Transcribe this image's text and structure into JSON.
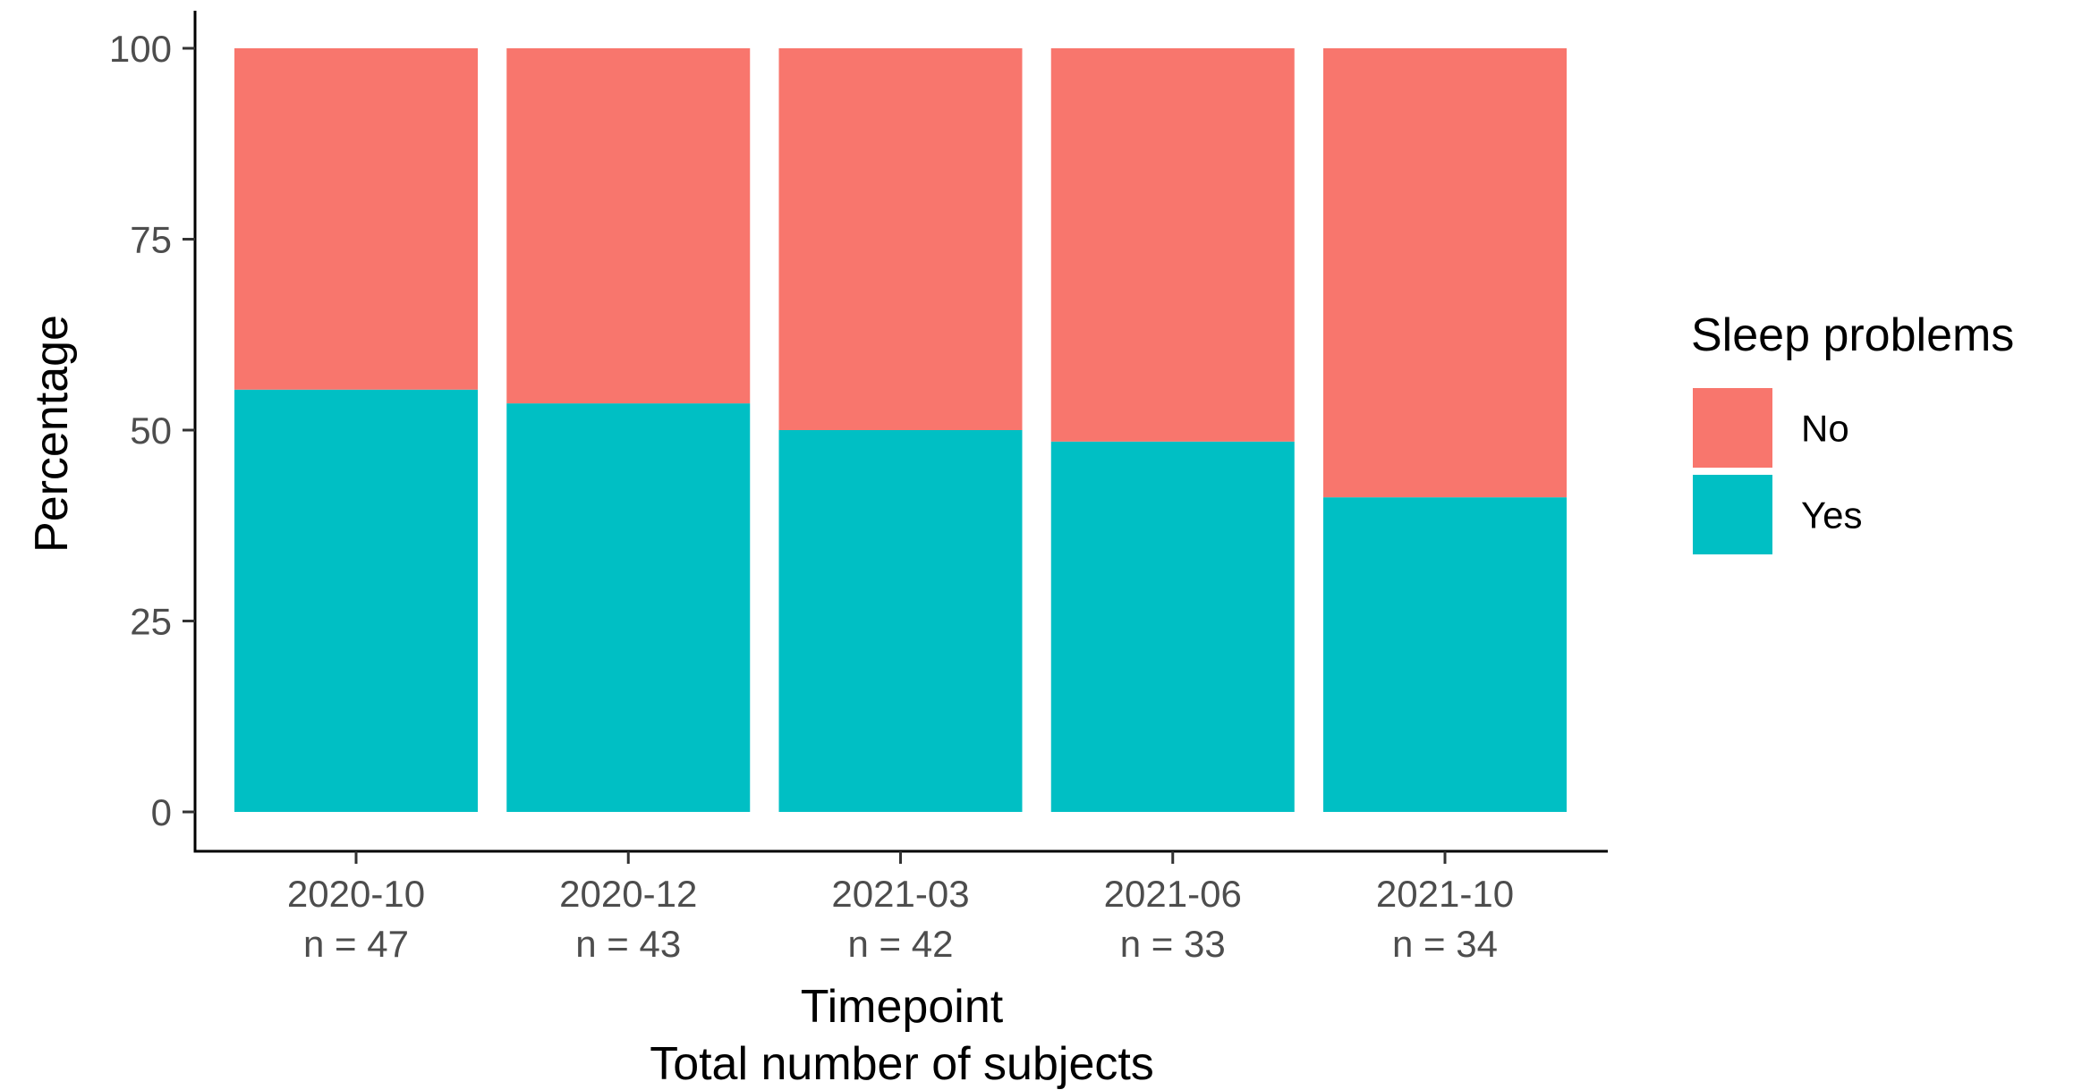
{
  "chart_data": {
    "type": "bar",
    "stacked": true,
    "categories": [
      "2020-10",
      "2020-12",
      "2021-03",
      "2021-06",
      "2021-10"
    ],
    "category_sublabels": [
      "n = 47",
      "n = 43",
      "n = 42",
      "n = 33",
      "n = 34"
    ],
    "series": [
      {
        "name": "Yes",
        "color": "#00BFC4",
        "values": [
          55.3,
          53.5,
          50.0,
          48.5,
          41.2
        ]
      },
      {
        "name": "No",
        "color": "#F8766D",
        "values": [
          44.7,
          46.5,
          50.0,
          51.5,
          58.8
        ]
      }
    ],
    "xlabel": "Timepoint",
    "xlabel2": "Total number of subjects",
    "ylabel": "Percentage",
    "ylim": [
      0,
      100
    ],
    "yticks": [
      0,
      25,
      50,
      75,
      100
    ],
    "grid": false,
    "legend": {
      "title": "Sleep problems",
      "placement": "right",
      "order": [
        "No",
        "Yes"
      ]
    },
    "axis_color": "#000000",
    "tick_label_color": "#4d4d4d"
  }
}
